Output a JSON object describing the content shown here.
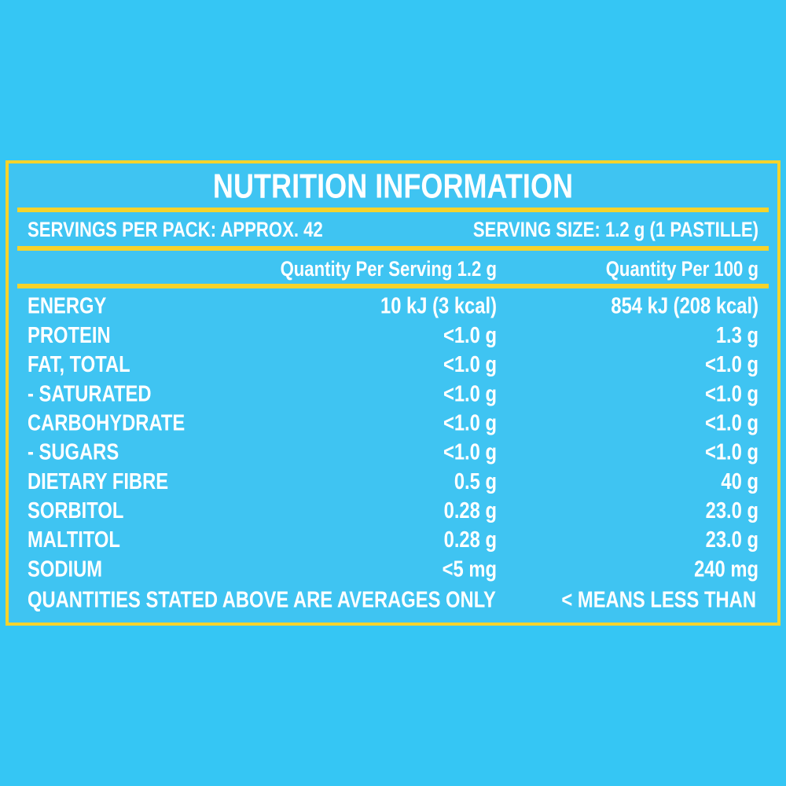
{
  "title": "NUTRITION INFORMATION",
  "servings_per_pack": "SERVINGS PER PACK: APPROX. 42",
  "serving_size": "SERVING SIZE: 1.2 g (1 PASTILLE)",
  "table": {
    "columns": [
      "Quantity Per Serving 1.2 g",
      "Quantity Per 100 g"
    ],
    "rows": [
      [
        "ENERGY",
        "10 kJ (3 kcal)",
        "854 kJ (208 kcal)"
      ],
      [
        "PROTEIN",
        "<1.0 g",
        "1.3 g"
      ],
      [
        "FAT, TOTAL",
        "<1.0 g",
        "<1.0 g"
      ],
      [
        "- SATURATED",
        "<1.0 g",
        "<1.0 g"
      ],
      [
        "CARBOHYDRATE",
        "<1.0 g",
        "<1.0 g"
      ],
      [
        "- SUGARS",
        "<1.0 g",
        "<1.0 g"
      ],
      [
        "DIETARY FIBRE",
        "0.5 g",
        "40 g"
      ],
      [
        "SORBITOL",
        "0.28 g",
        "23.0 g"
      ],
      [
        "MALTITOL",
        "0.28 g",
        "23.0 g"
      ],
      [
        "SODIUM",
        "<5 mg",
        "240 mg"
      ]
    ]
  },
  "footer": {
    "note": "QUANTITIES STATED ABOVE ARE AVERAGES ONLY",
    "legend": "< MEANS LESS THAN"
  }
}
